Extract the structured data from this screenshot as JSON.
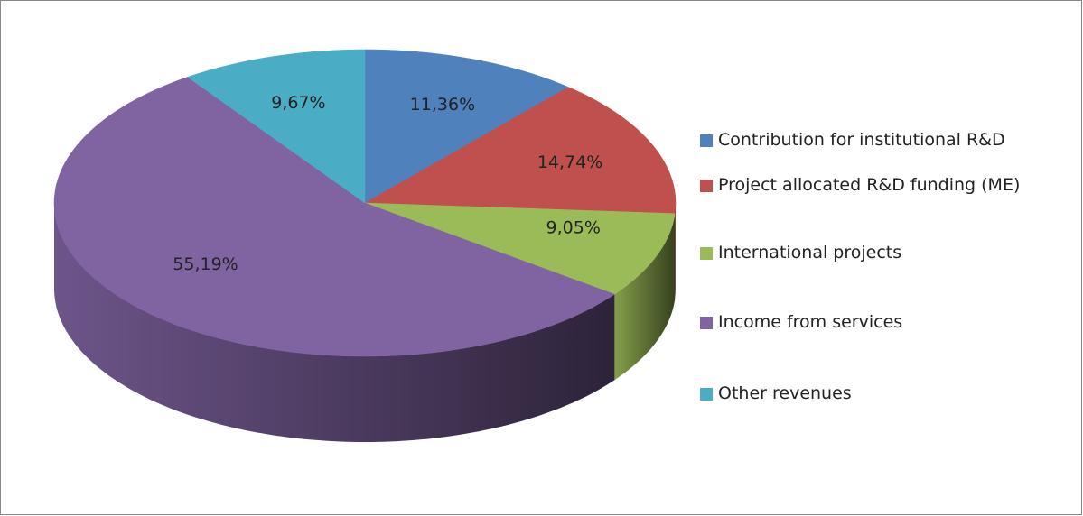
{
  "chart_data": {
    "type": "pie",
    "categories": [
      "Contribution for institutional R&D",
      "Project allocated R&D funding (ME)",
      "International projects",
      "Income from services",
      "Other revenues"
    ],
    "values": [
      11.36,
      14.74,
      9.05,
      55.19,
      9.67
    ],
    "value_labels": [
      "11,36%",
      "14,74%",
      "9,05%",
      "55,19%",
      "9,67%"
    ],
    "colors": [
      "#4f81bd",
      "#c0504d",
      "#9bbb59",
      "#8064a2",
      "#4bacc6"
    ],
    "legend": "right"
  }
}
